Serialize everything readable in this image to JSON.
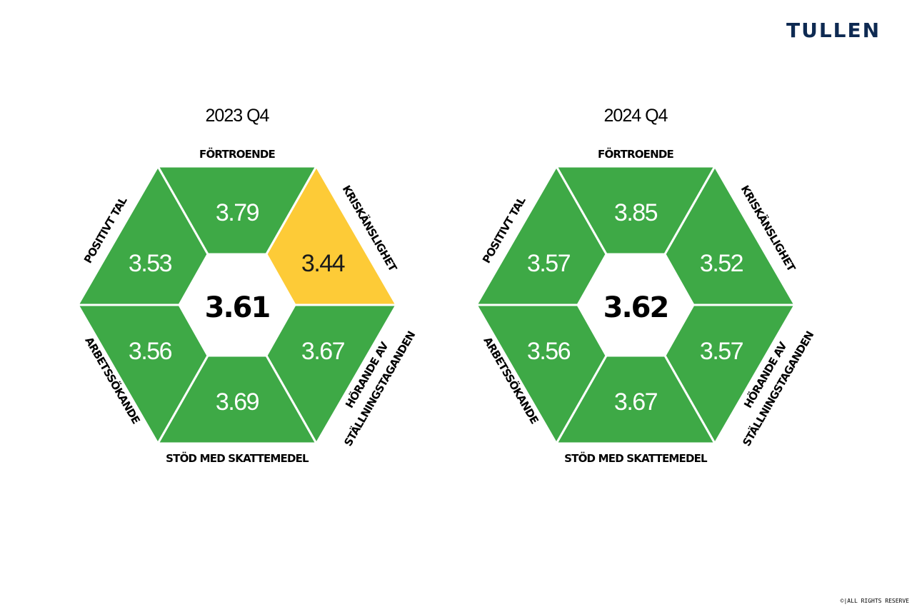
{
  "brand": {
    "logo_text": "TULLEN",
    "color": "#0e2a52"
  },
  "footer": {
    "copyright": "©|ALL RIGHTS RESERVE"
  },
  "colors": {
    "green": "#3ea946",
    "yellow": "#fdcb37",
    "border": "#ffffff"
  },
  "labels": {
    "fortroende": "FÖRTROENDE",
    "kriskanslighet": "KRISKÄNSLIGHET",
    "horande_line1": "HÖRANDE AV",
    "horande_line2": "STÄLLNINGSTAGANDEN",
    "stod": "STÖD MED SKATTEMEDEL",
    "arbetssokande": "ARBETSSÖKANDE",
    "positivt_tal": "POSITIVT TAL"
  },
  "chart_data": [
    {
      "type": "hexagon-score",
      "title": "2023 Q4",
      "overall": "3.61",
      "segments": [
        {
          "label": "FÖRTROENDE",
          "value": "3.79",
          "color": "green"
        },
        {
          "label": "KRISKÄNSLIGHET",
          "value": "3.44",
          "color": "yellow"
        },
        {
          "label": "HÖRANDE AV STÄLLNINGSTAGANDEN",
          "value": "3.67",
          "color": "green"
        },
        {
          "label": "STÖD MED SKATTEMEDEL",
          "value": "3.69",
          "color": "green"
        },
        {
          "label": "ARBETSSÖKANDE",
          "value": "3.56",
          "color": "green"
        },
        {
          "label": "POSITIVT TAL",
          "value": "3.53",
          "color": "green"
        }
      ]
    },
    {
      "type": "hexagon-score",
      "title": "2024 Q4",
      "overall": "3.62",
      "segments": [
        {
          "label": "FÖRTROENDE",
          "value": "3.85",
          "color": "green"
        },
        {
          "label": "KRISKÄNSLIGHET",
          "value": "3.52",
          "color": "green"
        },
        {
          "label": "HÖRANDE AV STÄLLNINGSTAGANDEN",
          "value": "3.57",
          "color": "green"
        },
        {
          "label": "STÖD MED SKATTEMEDEL",
          "value": "3.67",
          "color": "green"
        },
        {
          "label": "ARBETSSÖKANDE",
          "value": "3.56",
          "color": "green"
        },
        {
          "label": "POSITIVT TAL",
          "value": "3.57",
          "color": "green"
        }
      ]
    }
  ]
}
